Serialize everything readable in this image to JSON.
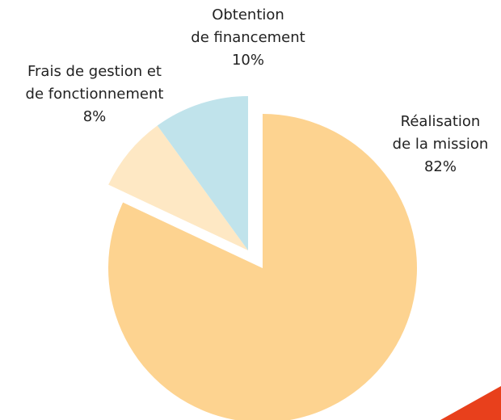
{
  "chart_data": {
    "type": "pie",
    "categories": [
      [
        "Réalisation",
        "de la mission"
      ],
      [
        "Frais de gestion et",
        "de fonctionnement"
      ],
      [
        "Obtention",
        "de financement"
      ]
    ],
    "values": [
      82,
      8,
      10
    ],
    "value_labels": [
      "82%",
      "8%",
      "10%"
    ],
    "colors": [
      "#fdd390",
      "#fee8c4",
      "#c0e3eb"
    ]
  }
}
